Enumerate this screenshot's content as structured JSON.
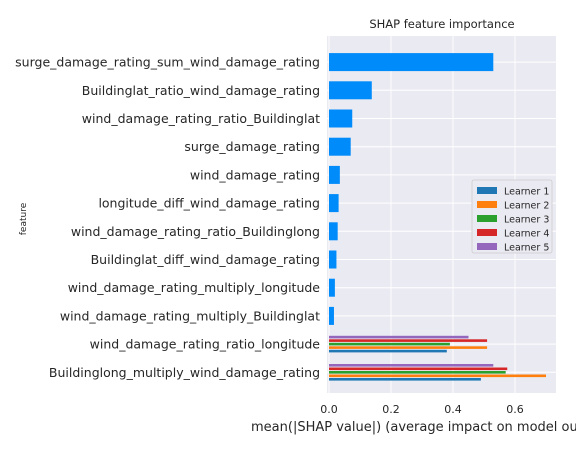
{
  "chart_data": {
    "type": "bar",
    "orientation": "horizontal",
    "title": "SHAP feature importance",
    "xlabel": "mean(|SHAP value|) (average impact on model output magnitude)",
    "ylabel": "feature",
    "xlim": [
      0,
      0.73
    ],
    "xticks": [
      "0.0",
      "0.2",
      "0.4",
      "0.6"
    ],
    "grid": true,
    "legend_position": "right",
    "categories": [
      "surge_damage_rating_sum_wind_damage_rating",
      "Buildinglat_ratio_wind_damage_rating",
      "wind_damage_rating_ratio_Buildinglat",
      "surge_damage_rating",
      "wind_damage_rating",
      "longitude_diff_wind_damage_rating",
      "wind_damage_rating_ratio_Buildinglong",
      "Buildinglat_diff_wind_damage_rating",
      "wind_damage_rating_multiply_longitude",
      "wind_damage_rating_multiply_Buildinglat",
      "wind_damage_rating_ratio_longitude",
      "Buildinglong_multiply_wind_damage_rating"
    ],
    "series": [
      {
        "name": "Learner 1",
        "color": "#1f77b4",
        "values": [
          0,
          0,
          0,
          0,
          0,
          0,
          0,
          0,
          0,
          0,
          0.38,
          0.49
        ]
      },
      {
        "name": "Learner 2",
        "color": "#ff7f0e",
        "values": [
          0,
          0,
          0,
          0,
          0,
          0,
          0,
          0,
          0,
          0,
          0.51,
          0.7
        ]
      },
      {
        "name": "Learner 3",
        "color": "#2ca02c",
        "values": [
          0,
          0,
          0,
          0,
          0,
          0,
          0,
          0,
          0,
          0,
          0.39,
          0.57
        ]
      },
      {
        "name": "Learner 4",
        "color": "#d62728",
        "values": [
          0,
          0,
          0,
          0,
          0,
          0,
          0,
          0,
          0,
          0,
          0.51,
          0.575
        ]
      },
      {
        "name": "Learner 5",
        "color": "#9467bd",
        "values": [
          0,
          0,
          0,
          0,
          0,
          0,
          0,
          0,
          0,
          0,
          0.45,
          0.53
        ]
      }
    ],
    "single_bars": {
      "color": "#008bfb",
      "values": [
        0.53,
        0.138,
        0.075,
        0.07,
        0.035,
        0.031,
        0.028,
        0.024,
        0.019,
        0.016,
        null,
        null
      ]
    }
  }
}
